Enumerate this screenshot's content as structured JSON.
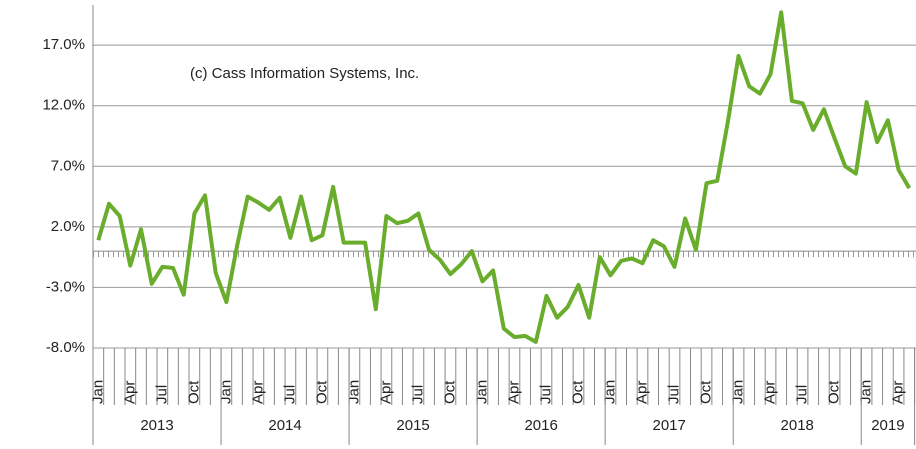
{
  "chart_data": {
    "type": "line",
    "annotation": "(c) Cass Information Systems, Inc.",
    "categories": [
      "Jan",
      null,
      null,
      "Apr",
      null,
      null,
      "Jul",
      null,
      null,
      "Oct",
      null,
      null,
      "Jan",
      null,
      null,
      "Apr",
      null,
      null,
      "Jul",
      null,
      null,
      "Oct",
      null,
      null,
      "Jan",
      null,
      null,
      "Apr",
      null,
      null,
      "Jul",
      null,
      null,
      "Oct",
      null,
      null,
      "Jan",
      null,
      null,
      "Apr",
      null,
      null,
      "Jul",
      null,
      null,
      "Oct",
      null,
      null,
      "Jan",
      null,
      null,
      "Apr",
      null,
      null,
      "Jul",
      null,
      null,
      "Oct",
      null,
      null,
      "Jan",
      null,
      null,
      "Apr",
      null,
      null,
      "Jul",
      null,
      null,
      "Oct",
      null,
      null,
      "Jan",
      null,
      null,
      "Apr",
      null
    ],
    "year_labels": [
      "2013",
      "2014",
      "2015",
      "2016",
      "2017",
      "2018",
      "2019"
    ],
    "series": [
      {
        "color": "#6aac2c",
        "values": [
          0.9,
          3.9,
          2.9,
          -1.2,
          1.8,
          -2.7,
          -1.3,
          -1.4,
          -3.6,
          3.1,
          4.6,
          -1.8,
          -4.2,
          0.4,
          4.5,
          4.0,
          3.4,
          4.4,
          1.1,
          4.5,
          0.9,
          1.3,
          5.3,
          0.7,
          0.7,
          0.7,
          -4.8,
          2.9,
          2.3,
          2.5,
          3.1,
          0.1,
          -0.7,
          -1.9,
          -1.1,
          0.0,
          -2.5,
          -1.6,
          -6.4,
          -7.1,
          -7.0,
          -7.5,
          -3.7,
          -5.5,
          -4.6,
          -2.8,
          -5.5,
          -0.5,
          -2.0,
          -0.8,
          -0.6,
          -1.0,
          0.9,
          0.4,
          -1.3,
          2.7,
          0.1,
          5.6,
          5.8,
          10.7,
          16.1,
          13.6,
          13.0,
          14.6,
          19.7,
          12.4,
          12.2,
          10.0,
          11.7,
          9.3,
          7.0,
          6.4,
          12.3,
          9.0,
          10.8,
          6.7,
          5.2
        ]
      }
    ],
    "ylim": [
      -8,
      20
    ],
    "yticks": [
      {
        "value": -8,
        "label": "-8.0%"
      },
      {
        "value": -3,
        "label": "-3.0%"
      },
      {
        "value": 2,
        "label": "2.0%"
      },
      {
        "value": 7,
        "label": "7.0%"
      },
      {
        "value": 12,
        "label": "12.0%"
      },
      {
        "value": 17,
        "label": "17.0%"
      }
    ],
    "grid": true
  }
}
